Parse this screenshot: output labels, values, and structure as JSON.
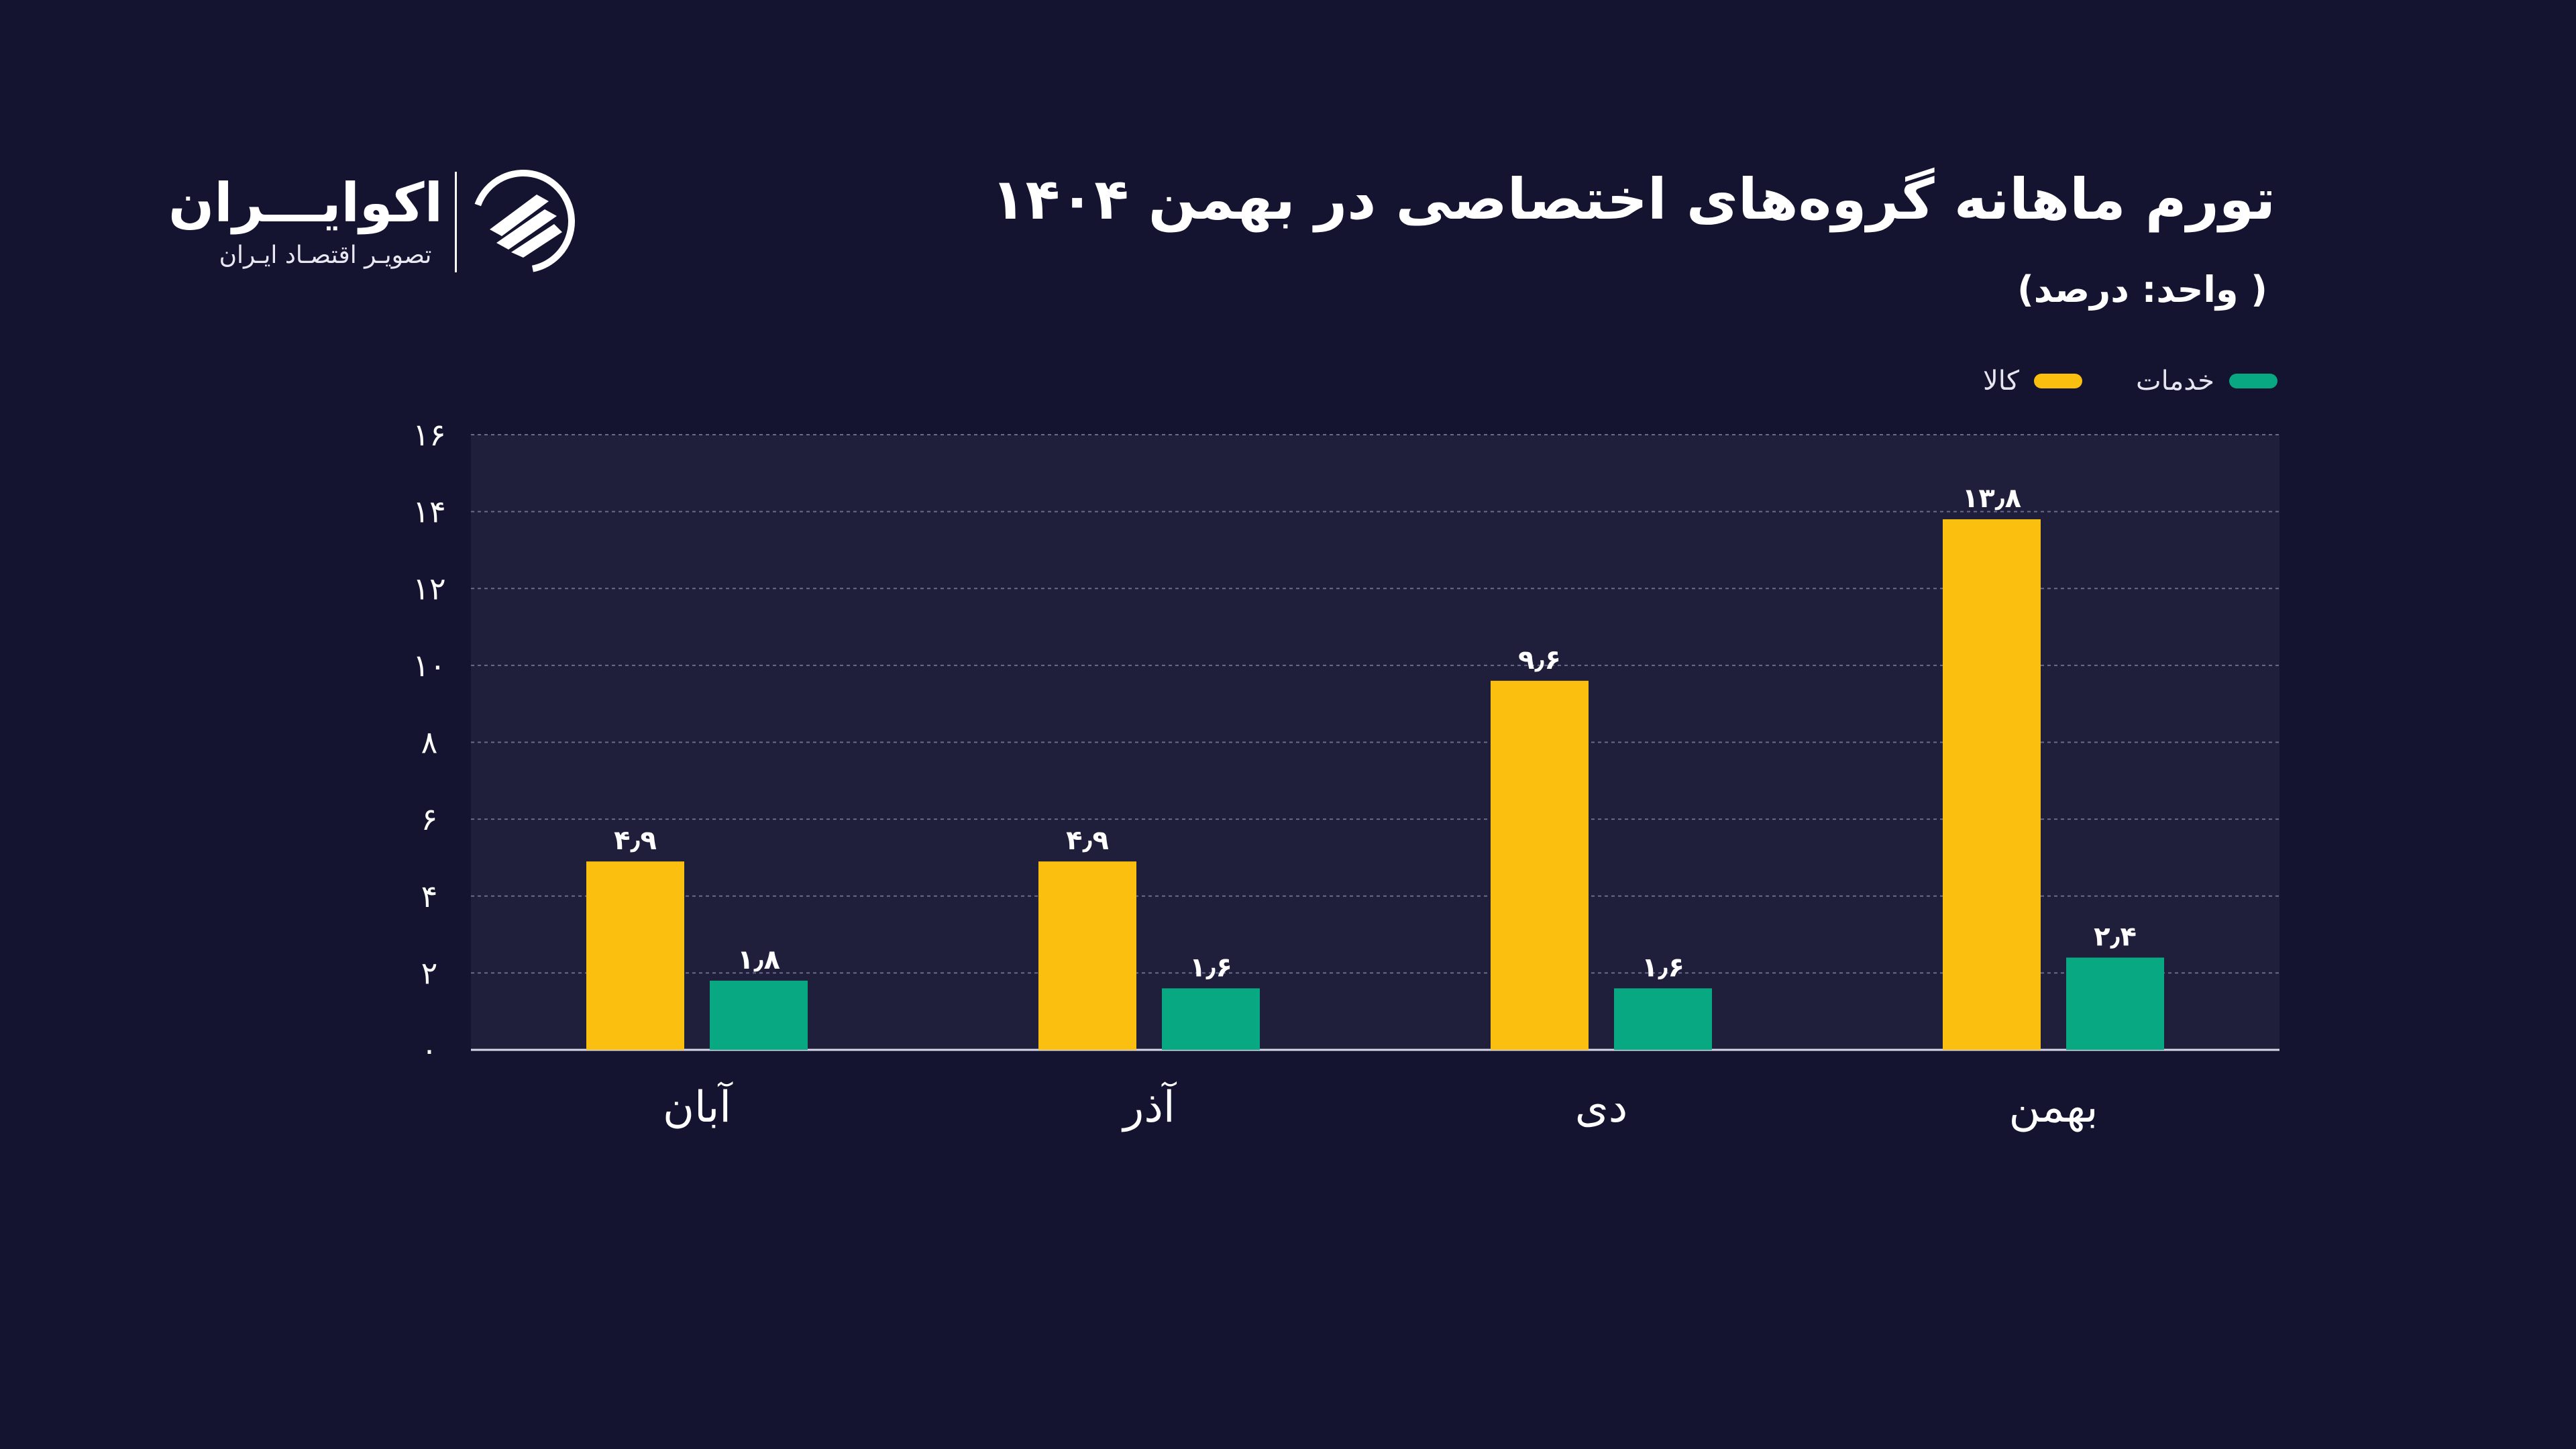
{
  "header": {
    "title": "تورم ماهانه گروه‌های اختصاصی در بهمن ۱۴۰۴",
    "unit": "( واحد: درصد)"
  },
  "logo": {
    "name": "اکوایـــران",
    "tagline": "تصویـر اقتصـاد ایـران"
  },
  "colors": {
    "background": "#141430",
    "plot_background": "#1f1f3c",
    "goods": "#fbbf10",
    "services": "#07a882",
    "gridline": "#6a6a8a",
    "text": "#ffffff"
  },
  "chart_data": {
    "type": "bar",
    "title": "تورم ماهانه گروه‌های اختصاصی در بهمن ۱۴۰۴",
    "ylabel": "( واحد: درصد)",
    "xlabel": "",
    "ylim": [
      0,
      16
    ],
    "y_ticks": [
      0,
      2,
      4,
      6,
      8,
      10,
      12,
      14,
      16
    ],
    "y_tick_labels": [
      "۰",
      "۲",
      "۴",
      "۶",
      "۸",
      "۱۰",
      "۱۲",
      "۱۴",
      "۱۶"
    ],
    "categories": [
      "آبان",
      "آذر",
      "دی",
      "بهمن"
    ],
    "legend_position": "top-right",
    "grid": true,
    "series": [
      {
        "name": "کالا",
        "color": "#fbbf10",
        "values": [
          4.9,
          4.9,
          9.6,
          13.8
        ],
        "labels": [
          "۴٫۹",
          "۴٫۹",
          "۹٫۶",
          "۱۳٫۸"
        ]
      },
      {
        "name": "خدمات",
        "color": "#07a882",
        "values": [
          1.8,
          1.6,
          1.6,
          2.4
        ],
        "labels": [
          "۱٫۸",
          "۱٫۶",
          "۱٫۶",
          "۲٫۴"
        ]
      }
    ]
  }
}
